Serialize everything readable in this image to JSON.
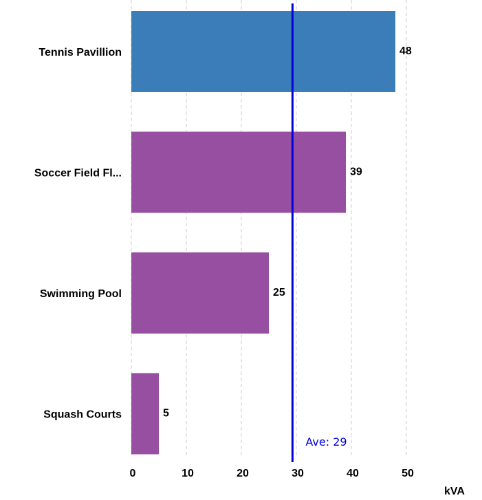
{
  "chart_data": {
    "type": "bar",
    "orientation": "horizontal",
    "categories": [
      "Tennis Pavillion",
      "Soccer Field Fl...",
      "Swimming Pool",
      "Squash Courts"
    ],
    "values": [
      48,
      39,
      25,
      5
    ],
    "bar_colors": [
      "#3a7db8",
      "#974fa1",
      "#974fa1",
      "#974fa1"
    ],
    "xlim": [
      0,
      52
    ],
    "xticks": [
      0,
      10,
      20,
      30,
      40,
      50
    ],
    "xlabel": "kVA",
    "grid": true,
    "average": {
      "value": 29.3,
      "label": "Ave: 29",
      "color": "#0000dd"
    }
  }
}
